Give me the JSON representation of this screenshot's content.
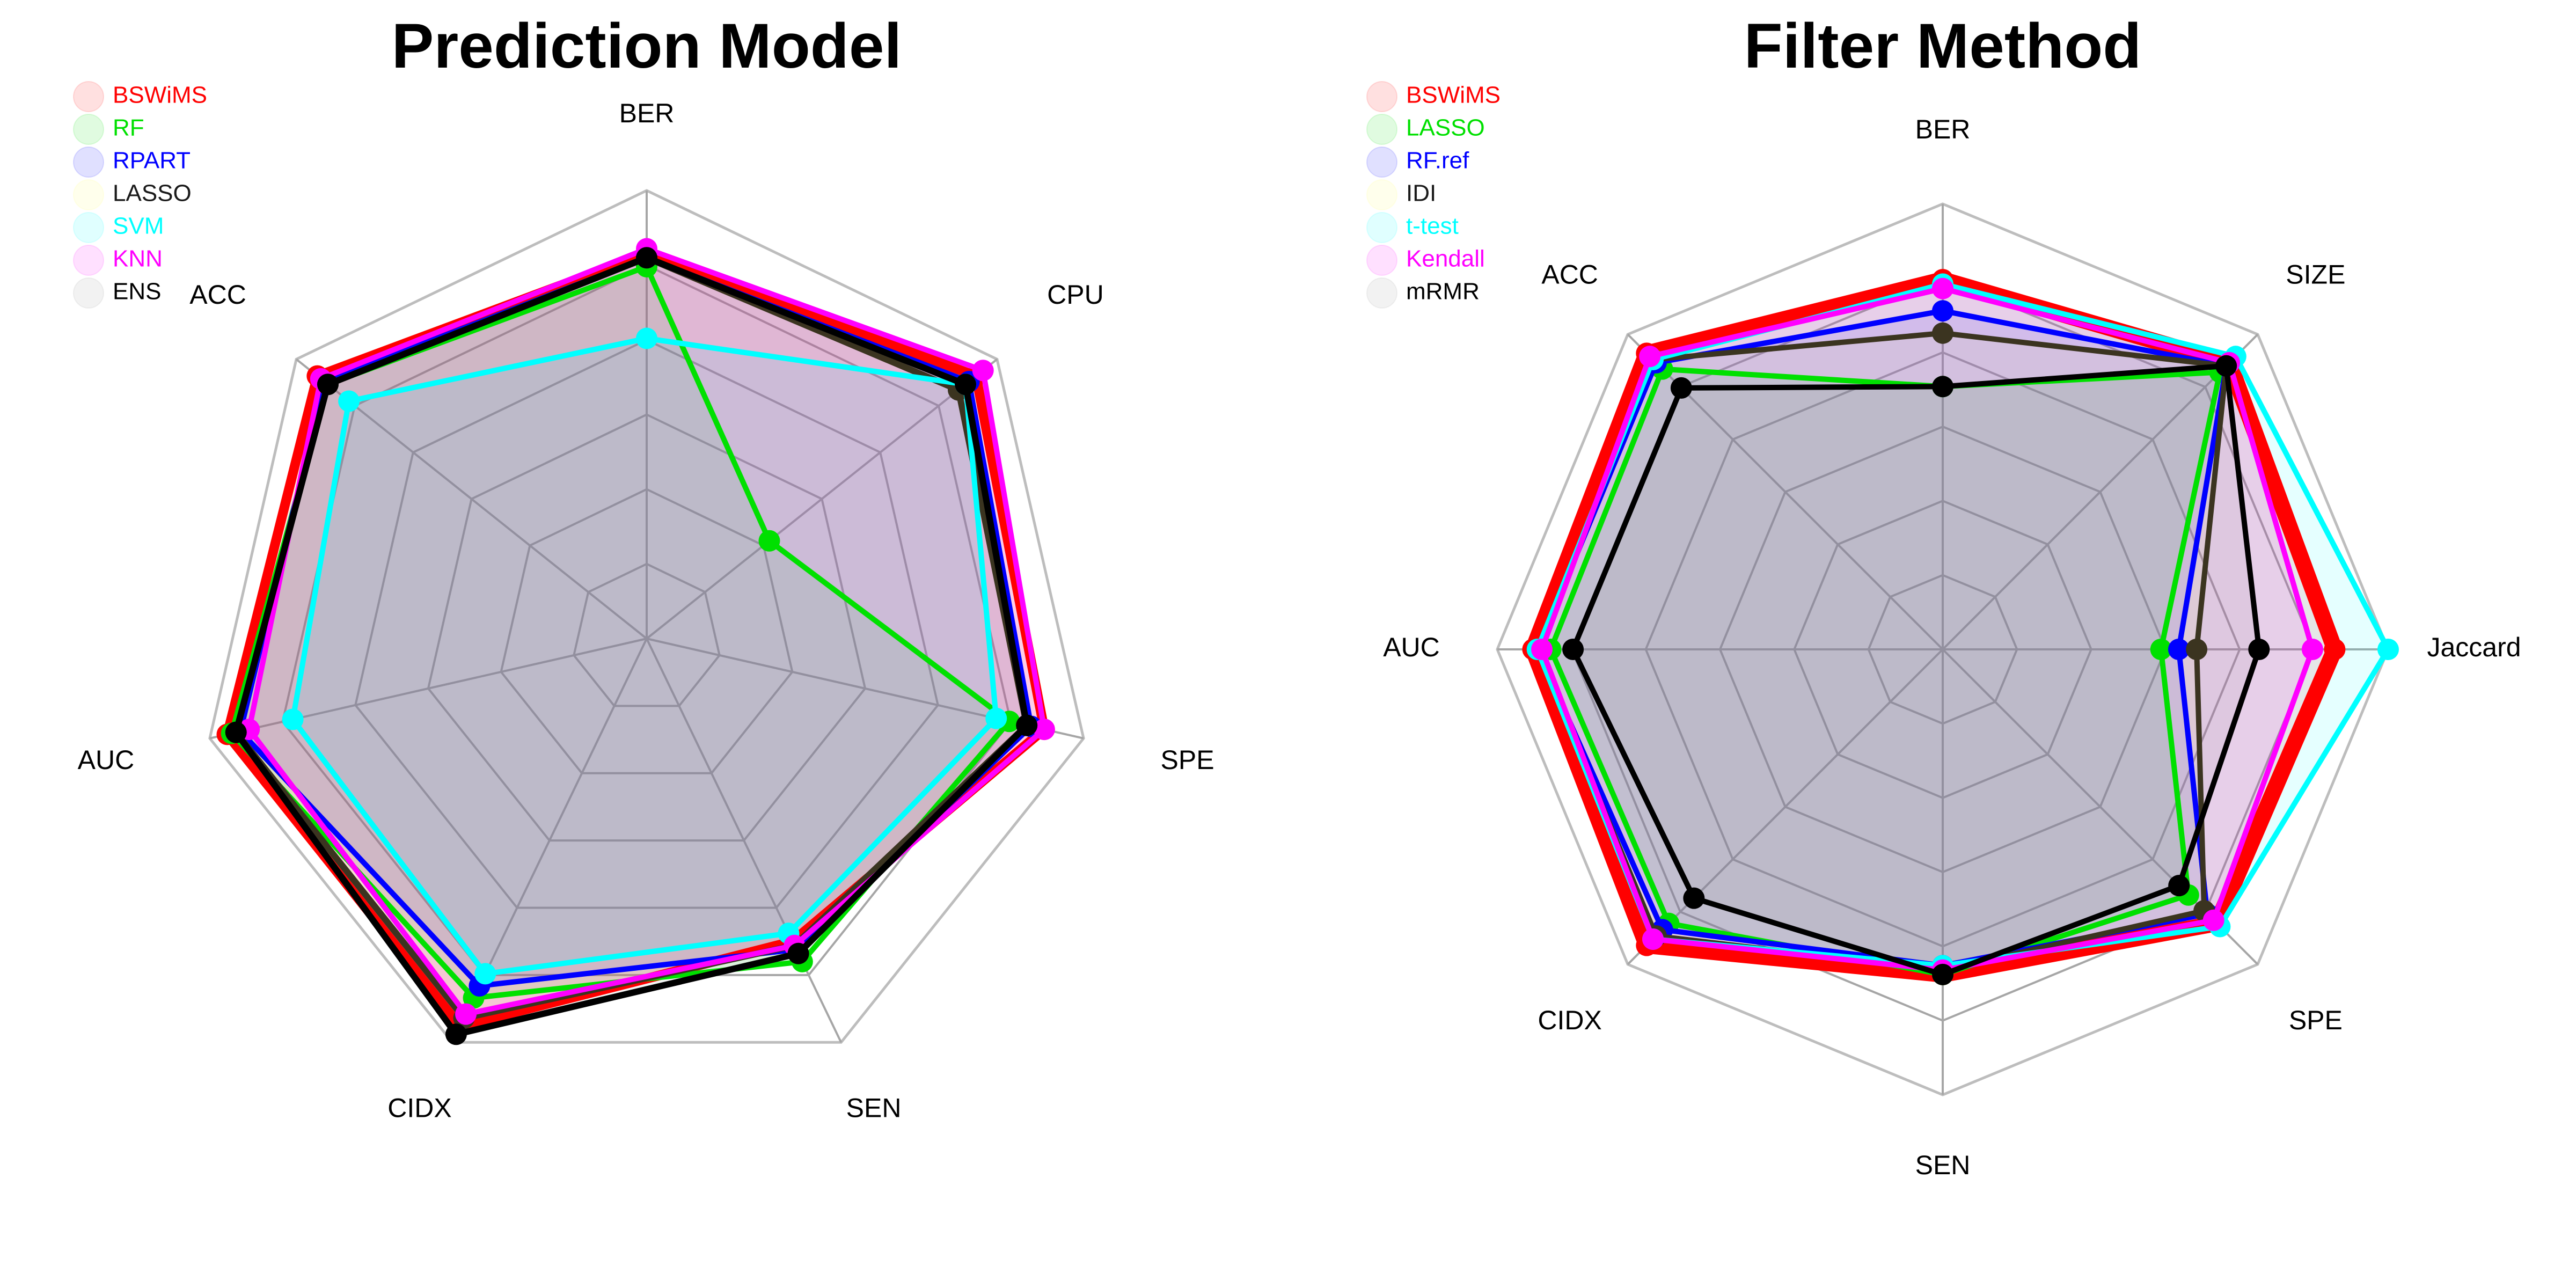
{
  "chart_data": [
    {
      "type": "radar",
      "title": "Prediction Model",
      "axes": [
        "BER",
        "CPU",
        "SPE",
        "SEN",
        "CIDX",
        "AUC",
        "ACC"
      ],
      "rlim": [
        0,
        1
      ],
      "grid": true,
      "rings": 6,
      "legend_position": "top-left",
      "series": [
        {
          "name": "BSWiMS",
          "color": "#ff0000",
          "fill": "#ff0000",
          "width": 18,
          "values": [
            0.86,
            0.94,
            0.91,
            0.75,
            0.96,
            0.96,
            0.94
          ]
        },
        {
          "name": "RF",
          "color": "#00e000",
          "fill": "#00e000",
          "width": 10,
          "values": [
            0.83,
            0.35,
            0.83,
            0.8,
            0.89,
            0.95,
            0.91
          ]
        },
        {
          "name": "RPART",
          "color": "#0000ff",
          "fill": "#0000ff",
          "width": 10,
          "values": [
            0.85,
            0.92,
            0.88,
            0.77,
            0.86,
            0.93,
            0.92
          ]
        },
        {
          "name": "LASSO",
          "color": "#3b3420",
          "fill": "#ffff66",
          "width": 12,
          "values": [
            0.85,
            0.89,
            0.87,
            0.76,
            0.94,
            0.94,
            0.91
          ]
        },
        {
          "name": "SVM",
          "color": "#00ffff",
          "fill": "#00ffff",
          "width": 10,
          "values": [
            0.67,
            0.91,
            0.8,
            0.73,
            0.83,
            0.81,
            0.85
          ]
        },
        {
          "name": "KNN",
          "color": "#ff00ff",
          "fill": "#ff00ff",
          "width": 10,
          "values": [
            0.87,
            0.96,
            0.91,
            0.76,
            0.93,
            0.91,
            0.93
          ]
        },
        {
          "name": "ENS",
          "color": "#000000",
          "fill": "#909090",
          "width": 12,
          "values": [
            0.85,
            0.91,
            0.87,
            0.78,
            0.98,
            0.94,
            0.91
          ]
        }
      ]
    },
    {
      "type": "radar",
      "title": "Filter Method",
      "axes": [
        "BER",
        "SIZE",
        "Jaccard",
        "SPE",
        "SEN",
        "CIDX",
        "AUC",
        "ACC"
      ],
      "rlim": [
        0,
        1
      ],
      "grid": true,
      "rings": 6,
      "legend_position": "top-left",
      "series": [
        {
          "name": "BSWiMS",
          "color": "#ff0000",
          "fill": "#ff0000",
          "width": 30,
          "values": [
            0.83,
            0.91,
            0.88,
            0.87,
            0.73,
            0.94,
            0.92,
            0.94
          ]
        },
        {
          "name": "LASSO",
          "color": "#00e000",
          "fill": "#00e000",
          "width": 10,
          "values": [
            0.59,
            0.88,
            0.49,
            0.78,
            0.73,
            0.87,
            0.88,
            0.89
          ]
        },
        {
          "name": "RF.ref",
          "color": "#0000ff",
          "fill": "#0000ff",
          "width": 10,
          "values": [
            0.76,
            0.9,
            0.53,
            0.84,
            0.71,
            0.89,
            0.91,
            0.91
          ]
        },
        {
          "name": "IDI",
          "color": "#3b3420",
          "fill": "#ffff66",
          "width": 10,
          "values": [
            0.71,
            0.9,
            0.57,
            0.83,
            0.72,
            0.91,
            0.91,
            0.92
          ]
        },
        {
          "name": "t-test",
          "color": "#00ffff",
          "fill": "#00ffff",
          "width": 10,
          "values": [
            0.82,
            0.93,
            1.0,
            0.88,
            0.71,
            0.92,
            0.91,
            0.92
          ]
        },
        {
          "name": "Kendall",
          "color": "#ff00ff",
          "fill": "#ff00ff",
          "width": 10,
          "values": [
            0.81,
            0.91,
            0.83,
            0.86,
            0.72,
            0.92,
            0.9,
            0.93
          ]
        },
        {
          "name": "mRMR",
          "color": "#000000",
          "fill": "#909090",
          "width": 10,
          "values": [
            0.59,
            0.9,
            0.71,
            0.75,
            0.73,
            0.79,
            0.83,
            0.83
          ]
        }
      ]
    }
  ]
}
